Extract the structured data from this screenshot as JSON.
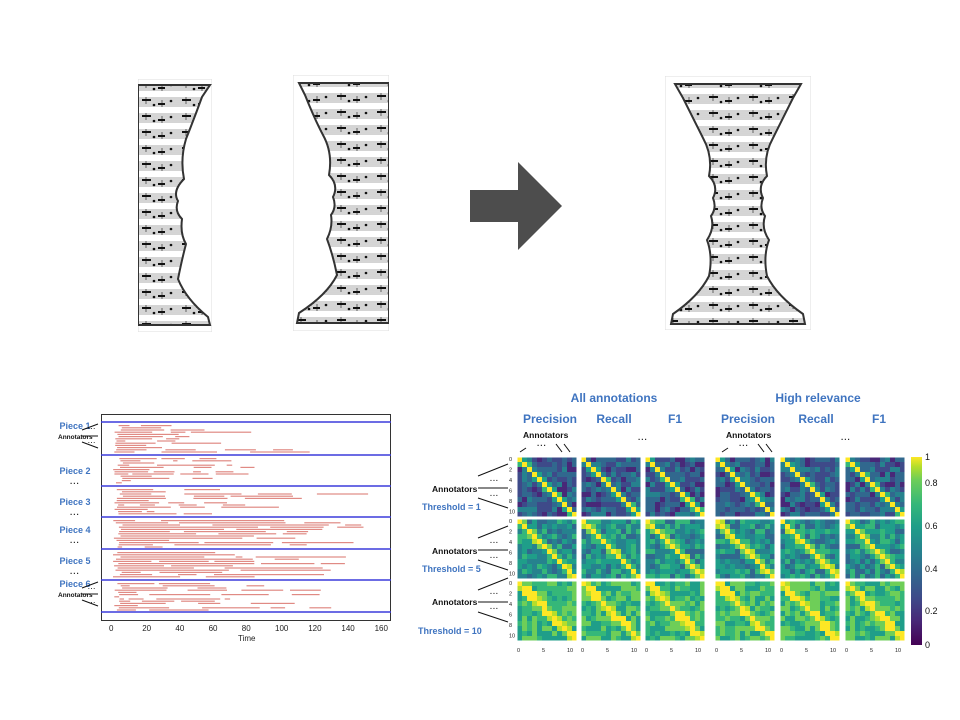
{
  "illustration": {
    "arrow_color": "#4d4d4d",
    "content": "sheet-music"
  },
  "timeline": {
    "pieces": [
      "Piece 1",
      "Piece 2",
      "Piece 3",
      "Piece 4",
      "Piece 5",
      "Piece 6"
    ],
    "annotators_label": "Annotators",
    "dots": "...",
    "x_ticks": [
      "0",
      "20",
      "40",
      "60",
      "80",
      "100",
      "120",
      "140",
      "160"
    ],
    "x_label": "Time",
    "separator_color": "#3b3bdc",
    "segment_color": "#e08a84"
  },
  "matrices": {
    "group_titles": [
      "All annotations",
      "High relevance"
    ],
    "metrics": [
      "Precision",
      "Recall",
      "F1",
      "Precision",
      "Recall",
      "F1"
    ],
    "annotators_label": "Annotators",
    "dots": "...",
    "thresholds": [
      "Threshold = 1",
      "Threshold = 5",
      "Threshold = 10"
    ],
    "y_ticks": [
      "0",
      "2",
      "4",
      "6",
      "8",
      "10"
    ],
    "x_ticks": [
      "0",
      "5",
      "10"
    ],
    "colorbar_ticks": [
      "1",
      "0.8",
      "0.6",
      "0.4",
      "0.2",
      "0"
    ],
    "colormap": "viridis",
    "text_color": "#3f74c0"
  }
}
